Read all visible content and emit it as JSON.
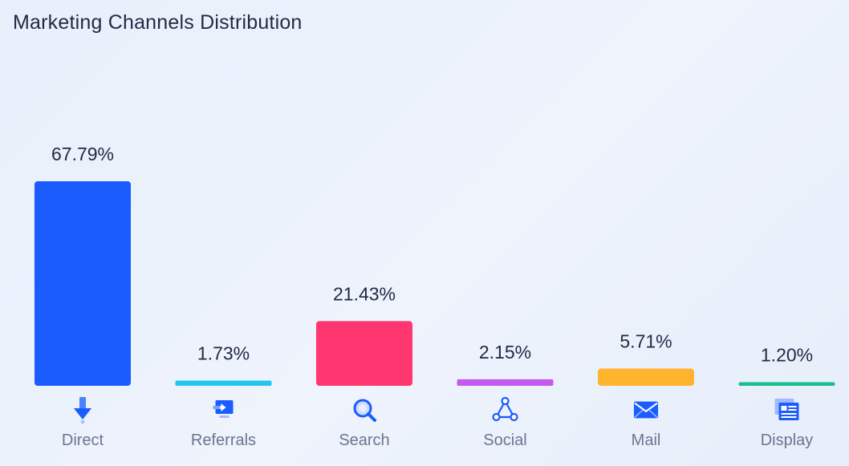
{
  "title": "Marketing Channels Distribution",
  "chart_data": {
    "type": "bar",
    "title": "Marketing Channels Distribution",
    "categories": [
      "Direct",
      "Referrals",
      "Search",
      "Social",
      "Mail",
      "Display"
    ],
    "values": [
      67.79,
      1.73,
      21.43,
      2.15,
      5.71,
      1.2
    ],
    "value_labels": [
      "67.79%",
      "1.73%",
      "21.43%",
      "2.15%",
      "5.71%",
      "1.20%"
    ],
    "colors": [
      "#1b5cff",
      "#22c6f0",
      "#ff3670",
      "#c458ef",
      "#ffb42e",
      "#14c08d"
    ],
    "icons": [
      "arrow-down-icon",
      "referral-screen-icon",
      "search-magnifier-icon",
      "social-network-icon",
      "mail-envelope-icon",
      "display-browser-icon"
    ],
    "ylim": [
      0,
      67.79
    ],
    "grid": false,
    "legend": "none"
  }
}
